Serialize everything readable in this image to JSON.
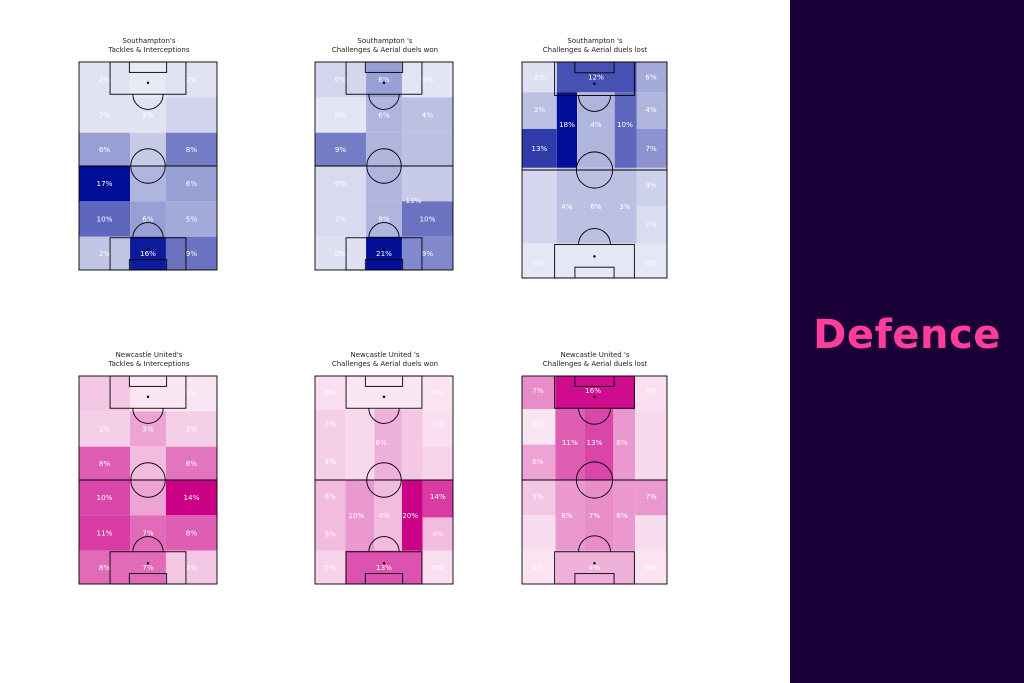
{
  "panel": {
    "title": "Defence",
    "background": "#1b0038",
    "title_color": "#ff3e9b"
  },
  "colors": {
    "southampton": "#000f96",
    "newcastle": "#cc0087",
    "pitch_lines": "#000000"
  },
  "chart_data": [
    {
      "type": "heatmap",
      "team": "southampton",
      "title_line1": "Southampton's",
      "title_line2": "Tackles & Interceptions",
      "rows": [
        [
          {
            "label": "2%",
            "v": 0.04
          },
          {
            "label": "",
            "v": 0.01
          },
          {
            "label": "2%",
            "v": 0.04
          }
        ],
        [
          {
            "label": "2%",
            "v": 0.04
          },
          {
            "label": "2%",
            "v": 0.04
          },
          {
            "label": "",
            "v": 0.11
          }
        ],
        [
          {
            "label": "6%",
            "v": 0.35
          },
          {
            "label": "",
            "v": 0.15
          },
          {
            "label": "8%",
            "v": 0.5
          }
        ],
        [
          {
            "label": "17%",
            "v": 1.0
          },
          {
            "label": "",
            "v": 0.25
          },
          {
            "label": "6%",
            "v": 0.35
          }
        ],
        [
          {
            "label": "10%",
            "v": 0.6
          },
          {
            "label": "6%",
            "v": 0.35
          },
          {
            "label": "5%",
            "v": 0.3
          }
        ],
        [
          {
            "label": "2%",
            "v": 0.18
          },
          {
            "label": "16%",
            "v": 0.95
          },
          {
            "label": "9%",
            "v": 0.55
          }
        ]
      ]
    },
    {
      "type": "heatmap",
      "team": "southampton",
      "title_line1": "Southampton 's",
      "title_line2": "Challenges & Aerial duels won",
      "rows": [
        [
          {
            "label": "0%",
            "v": 0.1
          },
          {
            "label": "6%",
            "v": 0.35
          },
          {
            "label": "0%",
            "v": 0.03
          }
        ],
        [
          {
            "label": "0%",
            "v": 0.03
          },
          {
            "label": "6%",
            "v": 0.25
          },
          {
            "label": "4%",
            "v": 0.2
          }
        ],
        [
          {
            "label": "9%",
            "v": 0.5
          },
          {
            "label": "",
            "v": 0.25
          },
          {
            "label": "",
            "v": 0.2
          }
        ],
        [
          {
            "label": "0%",
            "v": 0.08
          },
          {
            "label": "",
            "v": 0.25
          },
          {
            "label": "",
            "v": 0.15
          }
        ],
        [
          {
            "label": "2%",
            "v": 0.08
          },
          {
            "label": "8%",
            "v": 0.25
          },
          {
            "label": "10%",
            "v": 0.55
          }
        ],
        [
          {
            "label": "0%",
            "v": 0.05
          },
          {
            "label": "21%",
            "v": 1.0
          },
          {
            "label": "9%",
            "v": 0.45
          }
        ]
      ],
      "center_row": {
        "row": 1,
        "labels": [
          "6%",
          "4%",
          "4%"
        ]
      },
      "extra_labels": [
        {
          "row": 4,
          "col": 2,
          "label": "13%",
          "v": 0.65
        }
      ]
    },
    {
      "type": "heatmap",
      "team": "southampton",
      "title_line1": "Southampton 's",
      "title_line2": "Challenges & Aerial duels lost",
      "rows": [
        [
          {
            "label": "2%",
            "v": 0.05
          },
          {
            "label": "12%",
            "v": 0.7
          },
          {
            "label": "6%",
            "v": 0.3
          }
        ],
        [
          {
            "label": "3%",
            "v": 0.2
          },
          {
            "label": "18%",
            "v": 1.0
          },
          {
            "label": "4%",
            "v": 0.25
          }
        ],
        [
          {
            "label": "13%",
            "v": 0.8
          },
          {
            "label": "4%",
            "v": 0.25
          },
          {
            "label": "10%",
            "v": 0.6
          }
        ],
        [
          {
            "label": "",
            "v": 0.12
          },
          {
            "label": "",
            "v": 0.2
          },
          {
            "label": "7%",
            "v": 0.4
          }
        ],
        [
          {
            "label": "2%",
            "v": 0.1
          },
          {
            "label": "4%",
            "v": 0.2
          },
          {
            "label": "6%",
            "v": 0.25
          }
        ],
        [
          {
            "label": "0%",
            "v": 0.02
          },
          {
            "label": "",
            "v": 0.05
          },
          {
            "label": "0%",
            "v": 0.02
          }
        ]
      ],
      "grid": "lost",
      "cells": [
        {
          "x": 0.0,
          "y": 0.0,
          "w": 0.24,
          "h": 0.14,
          "v": 0.05,
          "label": "2%"
        },
        {
          "x": 0.24,
          "y": 0.0,
          "w": 0.55,
          "h": 0.14,
          "v": 0.7,
          "label": "12%"
        },
        {
          "x": 0.79,
          "y": 0.0,
          "w": 0.21,
          "h": 0.14,
          "v": 0.3,
          "label": "6%"
        },
        {
          "x": 0.0,
          "y": 0.14,
          "w": 0.24,
          "h": 0.17,
          "v": 0.2,
          "label": "3%"
        },
        {
          "x": 0.24,
          "y": 0.14,
          "w": 0.14,
          "h": 0.35,
          "v": 1.0,
          "label": "18%"
        },
        {
          "x": 0.38,
          "y": 0.14,
          "w": 0.41,
          "h": 0.35,
          "v": 0.25,
          "label": "4%"
        },
        {
          "x": 0.79,
          "y": 0.14,
          "w": 0.21,
          "h": 0.17,
          "v": 0.25,
          "label": "4%"
        },
        {
          "x": 0.0,
          "y": 0.31,
          "w": 0.24,
          "h": 0.18,
          "v": 0.8,
          "label": "13%"
        },
        {
          "x": 0.64,
          "y": 0.14,
          "w": 0.15,
          "h": 0.35,
          "v": 0.6,
          "label": "10%"
        },
        {
          "x": 0.79,
          "y": 0.31,
          "w": 0.21,
          "h": 0.18,
          "v": 0.4,
          "label": "7%"
        },
        {
          "x": 0.0,
          "y": 0.49,
          "w": 0.24,
          "h": 0.35,
          "v": 0.1,
          "label": ""
        },
        {
          "x": 0.24,
          "y": 0.49,
          "w": 0.55,
          "h": 0.35,
          "v": 0.2,
          "label": ""
        },
        {
          "x": 0.79,
          "y": 0.49,
          "w": 0.21,
          "h": 0.18,
          "v": 0.12,
          "label": "3%"
        },
        {
          "x": 0.79,
          "y": 0.67,
          "w": 0.21,
          "h": 0.17,
          "v": 0.07,
          "label": "2%"
        },
        {
          "x": 0.0,
          "y": 0.84,
          "w": 1.0,
          "h": 0.16,
          "v": 0.02,
          "label": ""
        }
      ],
      "cell_labels": [
        {
          "x": 0.12,
          "y": 0.07,
          "label": "2%"
        },
        {
          "x": 0.51,
          "y": 0.07,
          "label": "12%"
        },
        {
          "x": 0.89,
          "y": 0.07,
          "label": "6%"
        },
        {
          "x": 0.12,
          "y": 0.22,
          "label": "3%"
        },
        {
          "x": 0.89,
          "y": 0.22,
          "label": "4%"
        },
        {
          "x": 0.31,
          "y": 0.29,
          "label": "18%"
        },
        {
          "x": 0.51,
          "y": 0.29,
          "label": "4%"
        },
        {
          "x": 0.71,
          "y": 0.29,
          "label": "10%"
        },
        {
          "x": 0.12,
          "y": 0.4,
          "label": "13%"
        },
        {
          "x": 0.89,
          "y": 0.4,
          "label": "7%"
        },
        {
          "x": 0.89,
          "y": 0.57,
          "label": "3%"
        },
        {
          "x": 0.31,
          "y": 0.67,
          "label": "4%"
        },
        {
          "x": 0.51,
          "y": 0.67,
          "label": "6%"
        },
        {
          "x": 0.71,
          "y": 0.67,
          "label": "3%"
        },
        {
          "x": 0.89,
          "y": 0.75,
          "label": "2%"
        },
        {
          "x": 0.12,
          "y": 0.93,
          "label": "0%"
        },
        {
          "x": 0.89,
          "y": 0.93,
          "label": "0%"
        }
      ]
    },
    {
      "type": "heatmap",
      "team": "newcastle",
      "title_line1": "Newcastle United's",
      "title_line2": "Tackles & Interceptions",
      "rows": [
        [
          {
            "label": "",
            "v": 0.15
          },
          {
            "label": "",
            "v": 0.02
          },
          {
            "label": "1%",
            "v": 0.02
          }
        ],
        [
          {
            "label": "2%",
            "v": 0.12
          },
          {
            "label": "3%",
            "v": 0.3
          },
          {
            "label": "2%",
            "v": 0.12
          }
        ],
        [
          {
            "label": "8%",
            "v": 0.6
          },
          {
            "label": "",
            "v": 0.2
          },
          {
            "label": "6%",
            "v": 0.5
          }
        ],
        [
          {
            "label": "10%",
            "v": 0.7
          },
          {
            "label": "",
            "v": 0.3
          },
          {
            "label": "14%",
            "v": 1.0
          }
        ],
        [
          {
            "label": "11%",
            "v": 0.75
          },
          {
            "label": "7%",
            "v": 0.55
          },
          {
            "label": "8%",
            "v": 0.6
          }
        ],
        [
          {
            "label": "8%",
            "v": 0.55
          },
          {
            "label": "7%",
            "v": 0.55
          },
          {
            "label": "3%",
            "v": 0.15
          }
        ]
      ]
    },
    {
      "type": "heatmap",
      "team": "newcastle",
      "title_line1": "Newcastle United 's",
      "title_line2": "Challenges & Aerial duels won",
      "grid": "won2",
      "cells": [
        {
          "x": 0.0,
          "y": 0.0,
          "w": 0.22,
          "h": 0.16,
          "v": 0.05,
          "label": "0%"
        },
        {
          "x": 0.22,
          "y": 0.0,
          "w": 0.56,
          "h": 0.16,
          "v": 0.02,
          "label": ""
        },
        {
          "x": 0.78,
          "y": 0.0,
          "w": 0.22,
          "h": 0.16,
          "v": 0.03,
          "label": "0%"
        },
        {
          "x": 0.0,
          "y": 0.16,
          "w": 0.22,
          "h": 0.34,
          "v": 0.12,
          "label": ""
        },
        {
          "x": 0.22,
          "y": 0.16,
          "w": 0.21,
          "h": 0.34,
          "v": 0.08,
          "label": ""
        },
        {
          "x": 0.43,
          "y": 0.16,
          "w": 0.2,
          "h": 0.34,
          "v": 0.25,
          "label": "6%"
        },
        {
          "x": 0.63,
          "y": 0.16,
          "w": 0.15,
          "h": 0.34,
          "v": 0.15,
          "label": ""
        },
        {
          "x": 0.78,
          "y": 0.16,
          "w": 0.22,
          "h": 0.18,
          "v": 0.05,
          "label": "2%"
        },
        {
          "x": 0.78,
          "y": 0.34,
          "w": 0.22,
          "h": 0.16,
          "v": 0.1,
          "label": ""
        },
        {
          "x": 0.0,
          "y": 0.5,
          "w": 0.22,
          "h": 0.34,
          "v": 0.2,
          "label": ""
        },
        {
          "x": 0.22,
          "y": 0.5,
          "w": 0.21,
          "h": 0.34,
          "v": 0.35,
          "label": ""
        },
        {
          "x": 0.43,
          "y": 0.5,
          "w": 0.2,
          "h": 0.34,
          "v": 0.2,
          "label": ""
        },
        {
          "x": 0.63,
          "y": 0.5,
          "w": 0.15,
          "h": 0.34,
          "v": 1.0,
          "label": ""
        },
        {
          "x": 0.78,
          "y": 0.5,
          "w": 0.22,
          "h": 0.18,
          "v": 0.75,
          "label": ""
        },
        {
          "x": 0.78,
          "y": 0.68,
          "w": 0.22,
          "h": 0.16,
          "v": 0.2,
          "label": ""
        },
        {
          "x": 0.0,
          "y": 0.84,
          "w": 0.22,
          "h": 0.16,
          "v": 0.1,
          "label": ""
        },
        {
          "x": 0.22,
          "y": 0.84,
          "w": 0.56,
          "h": 0.16,
          "v": 0.65,
          "label": ""
        },
        {
          "x": 0.78,
          "y": 0.84,
          "w": 0.22,
          "h": 0.16,
          "v": 0.05,
          "label": ""
        }
      ],
      "cell_labels": [
        {
          "x": 0.11,
          "y": 0.08,
          "label": "0%"
        },
        {
          "x": 0.89,
          "y": 0.08,
          "label": "0%"
        },
        {
          "x": 0.11,
          "y": 0.23,
          "label": "2%"
        },
        {
          "x": 0.89,
          "y": 0.23,
          "label": "2%"
        },
        {
          "x": 0.48,
          "y": 0.32,
          "label": "6%"
        },
        {
          "x": 0.11,
          "y": 0.41,
          "label": "4%"
        },
        {
          "x": 0.11,
          "y": 0.58,
          "label": "6%"
        },
        {
          "x": 0.89,
          "y": 0.58,
          "label": "14%"
        },
        {
          "x": 0.3,
          "y": 0.67,
          "label": "10%"
        },
        {
          "x": 0.5,
          "y": 0.67,
          "label": "4%"
        },
        {
          "x": 0.69,
          "y": 0.67,
          "label": "20%"
        },
        {
          "x": 0.11,
          "y": 0.76,
          "label": "5%"
        },
        {
          "x": 0.89,
          "y": 0.76,
          "label": "4%"
        },
        {
          "x": 0.11,
          "y": 0.92,
          "label": "5%"
        },
        {
          "x": 0.5,
          "y": 0.92,
          "label": "13%"
        },
        {
          "x": 0.89,
          "y": 0.92,
          "label": "0%"
        }
      ]
    },
    {
      "type": "heatmap",
      "team": "newcastle",
      "title_line1": "Newcastle United 's",
      "title_line2": "Challenges & Aerial duels lost",
      "grid": "lost2",
      "cells": [
        {
          "x": 0.0,
          "y": 0.0,
          "w": 0.23,
          "h": 0.16,
          "v": 0.4,
          "label": ""
        },
        {
          "x": 0.23,
          "y": 0.0,
          "w": 0.55,
          "h": 0.16,
          "v": 0.95,
          "label": ""
        },
        {
          "x": 0.78,
          "y": 0.0,
          "w": 0.22,
          "h": 0.16,
          "v": 0.05,
          "label": ""
        },
        {
          "x": 0.0,
          "y": 0.16,
          "w": 0.23,
          "h": 0.17,
          "v": 0.02,
          "label": ""
        },
        {
          "x": 0.23,
          "y": 0.16,
          "w": 0.2,
          "h": 0.34,
          "v": 0.6,
          "label": ""
        },
        {
          "x": 0.43,
          "y": 0.16,
          "w": 0.2,
          "h": 0.34,
          "v": 0.7,
          "label": ""
        },
        {
          "x": 0.63,
          "y": 0.16,
          "w": 0.15,
          "h": 0.34,
          "v": 0.35,
          "label": ""
        },
        {
          "x": 0.78,
          "y": 0.16,
          "w": 0.22,
          "h": 0.34,
          "v": 0.08,
          "label": ""
        },
        {
          "x": 0.0,
          "y": 0.33,
          "w": 0.23,
          "h": 0.17,
          "v": 0.3,
          "label": ""
        },
        {
          "x": 0.0,
          "y": 0.5,
          "w": 0.23,
          "h": 0.17,
          "v": 0.15,
          "label": ""
        },
        {
          "x": 0.23,
          "y": 0.5,
          "w": 0.2,
          "h": 0.34,
          "v": 0.35,
          "label": ""
        },
        {
          "x": 0.43,
          "y": 0.5,
          "w": 0.2,
          "h": 0.34,
          "v": 0.4,
          "label": ""
        },
        {
          "x": 0.63,
          "y": 0.5,
          "w": 0.15,
          "h": 0.34,
          "v": 0.35,
          "label": ""
        },
        {
          "x": 0.78,
          "y": 0.5,
          "w": 0.22,
          "h": 0.17,
          "v": 0.35,
          "label": ""
        },
        {
          "x": 0.0,
          "y": 0.67,
          "w": 0.23,
          "h": 0.17,
          "v": 0.06,
          "label": ""
        },
        {
          "x": 0.78,
          "y": 0.67,
          "w": 0.22,
          "h": 0.17,
          "v": 0.06,
          "label": ""
        },
        {
          "x": 0.0,
          "y": 0.84,
          "w": 0.23,
          "h": 0.16,
          "v": 0.03,
          "label": ""
        },
        {
          "x": 0.23,
          "y": 0.84,
          "w": 0.55,
          "h": 0.16,
          "v": 0.25,
          "label": ""
        },
        {
          "x": 0.78,
          "y": 0.84,
          "w": 0.22,
          "h": 0.16,
          "v": 0.03,
          "label": ""
        }
      ],
      "cell_labels": [
        {
          "x": 0.11,
          "y": 0.07,
          "label": "7%"
        },
        {
          "x": 0.49,
          "y": 0.07,
          "label": "16%"
        },
        {
          "x": 0.89,
          "y": 0.07,
          "label": "0%"
        },
        {
          "x": 0.11,
          "y": 0.23,
          "label": "0%"
        },
        {
          "x": 0.33,
          "y": 0.32,
          "label": "11%"
        },
        {
          "x": 0.5,
          "y": 0.32,
          "label": "13%"
        },
        {
          "x": 0.69,
          "y": 0.32,
          "label": "6%"
        },
        {
          "x": 0.11,
          "y": 0.41,
          "label": "6%"
        },
        {
          "x": 0.11,
          "y": 0.58,
          "label": "5%"
        },
        {
          "x": 0.89,
          "y": 0.58,
          "label": "7%"
        },
        {
          "x": 0.31,
          "y": 0.67,
          "label": "6%"
        },
        {
          "x": 0.5,
          "y": 0.67,
          "label": "7%"
        },
        {
          "x": 0.69,
          "y": 0.67,
          "label": "6%"
        },
        {
          "x": 0.11,
          "y": 0.92,
          "label": "0%"
        },
        {
          "x": 0.5,
          "y": 0.92,
          "label": "4%"
        },
        {
          "x": 0.89,
          "y": 0.92,
          "label": "0%"
        }
      ]
    }
  ]
}
